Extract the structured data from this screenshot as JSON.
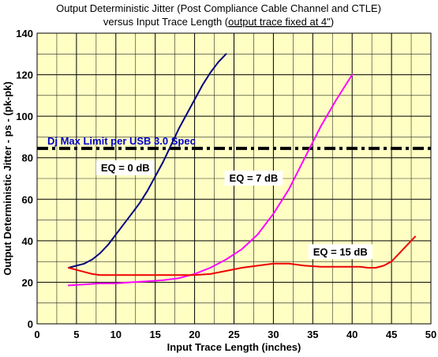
{
  "chart_data": {
    "type": "line",
    "title": "Output Deterministic Jitter (Post Compliance Cable Channel and CTLE)",
    "subtitle_prefix": "versus Input Trace Length (",
    "subtitle_underlined": "output trace fixed at 4\"",
    "subtitle_suffix": ")",
    "xlabel": "Input Trace Length (inches)",
    "ylabel": "Output Deterministic Jitter - ps - (pk-pk)",
    "xlim": [
      0,
      50
    ],
    "ylim": [
      0,
      140
    ],
    "x_ticks": [
      0,
      5,
      10,
      15,
      20,
      25,
      30,
      35,
      40,
      45,
      50
    ],
    "y_ticks": [
      0,
      20,
      40,
      60,
      80,
      100,
      120,
      140
    ],
    "x_grid_step": 2.5,
    "y_grid_step": 10,
    "grid": true,
    "background_color": "#ffffc4",
    "limit_line": {
      "y": 84.5,
      "label": "Dj Max Limit  per USB 3.0 Spec",
      "label_color": "#0000cc",
      "line_color": "#000000"
    },
    "series": [
      {
        "name": "EQ = 0 dB",
        "color": "#000080",
        "x": [
          4,
          5,
          6,
          7,
          8,
          9,
          10,
          11,
          12,
          13,
          14,
          15,
          16,
          17,
          18,
          19,
          20,
          21,
          22,
          23,
          24
        ],
        "y": [
          27,
          28,
          29,
          31,
          34,
          38,
          43,
          48,
          53,
          58,
          64,
          71,
          78,
          86,
          94,
          101,
          108,
          115,
          121,
          126,
          130
        ]
      },
      {
        "name": "EQ = 7 dB",
        "color": "#ff00ff",
        "x": [
          4,
          6,
          8,
          10,
          12,
          14,
          16,
          18,
          20,
          22,
          24,
          26,
          28,
          30,
          32,
          34,
          36,
          38,
          40
        ],
        "y": [
          18.5,
          19,
          19.5,
          19.5,
          20,
          20.5,
          21,
          22,
          24,
          27,
          31,
          36,
          43,
          53,
          65,
          80,
          95,
          108,
          120
        ]
      },
      {
        "name": "EQ = 15 dB",
        "color": "#ee0000",
        "x": [
          4,
          5,
          6,
          7,
          8,
          10,
          12,
          14,
          16,
          18,
          20,
          22,
          24,
          26,
          28,
          30,
          32,
          34,
          36,
          38,
          40,
          41,
          42,
          43,
          44,
          45,
          46,
          47,
          48
        ],
        "y": [
          27,
          26,
          25,
          24,
          23.5,
          23.5,
          23.5,
          23.5,
          23.5,
          23.5,
          23.5,
          24,
          25.5,
          27,
          28,
          29,
          29,
          28,
          27.5,
          27.5,
          27.5,
          27.5,
          27,
          27,
          28,
          30,
          34,
          38,
          42
        ]
      }
    ],
    "annotations": [
      {
        "text": "EQ = 0 dB",
        "x": 11.2,
        "y": 73.5
      },
      {
        "text": "EQ = 7 dB",
        "x": 27.5,
        "y": 68.5
      },
      {
        "text": "EQ = 15 dB",
        "x": 38.5,
        "y": 33
      }
    ]
  }
}
